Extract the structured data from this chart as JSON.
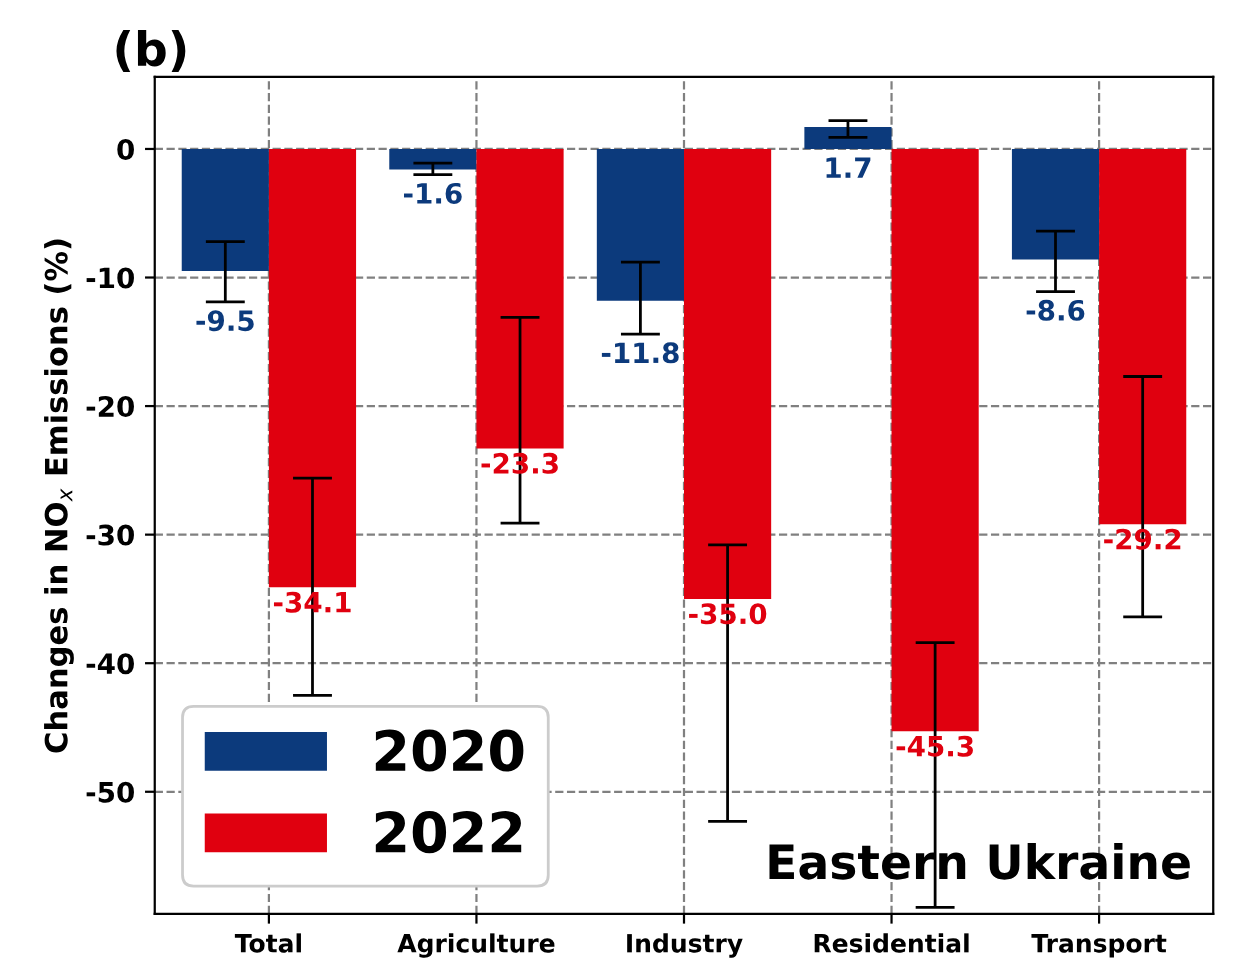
{
  "chart_data": {
    "type": "bar",
    "title": "(b)",
    "ylabel": "Changes in NO$_{x}$ Emissions (%)",
    "categories": [
      "Total",
      "Agriculture",
      "Industry",
      "Residential",
      "Transport"
    ],
    "series": [
      {
        "name": "2020",
        "color": "#0c3a7c",
        "values": [
          -9.5,
          -1.6,
          -11.8,
          1.7,
          -8.6
        ],
        "value_labels": [
          "-9.5",
          "-1.6",
          "-11.8",
          "1.7",
          "-8.6"
        ],
        "errors": [
          [
            -11.9,
            -7.2
          ],
          [
            -2.0,
            -1.1
          ],
          [
            -14.4,
            -8.8
          ],
          [
            0.9,
            2.2
          ],
          [
            -11.1,
            -6.4
          ]
        ]
      },
      {
        "name": "2022",
        "color": "#e0000f",
        "values": [
          -34.1,
          -23.3,
          -35.0,
          -45.3,
          -29.2
        ],
        "value_labels": [
          "-34.1",
          "-23.3",
          "-35.0",
          "-45.3",
          "-29.2"
        ],
        "errors": [
          [
            -42.5,
            -25.6
          ],
          [
            -29.1,
            -13.1
          ],
          [
            -52.3,
            -30.8
          ],
          [
            -59.0,
            -38.4
          ],
          [
            -36.4,
            -17.7
          ]
        ]
      }
    ],
    "ylim": [
      -59.5,
      5.6
    ],
    "yticks": [
      0,
      -10,
      -20,
      -30,
      -40,
      -50
    ],
    "grid": true,
    "legend": "bottom left",
    "annotations": [
      "Eastern Ukraine"
    ]
  }
}
